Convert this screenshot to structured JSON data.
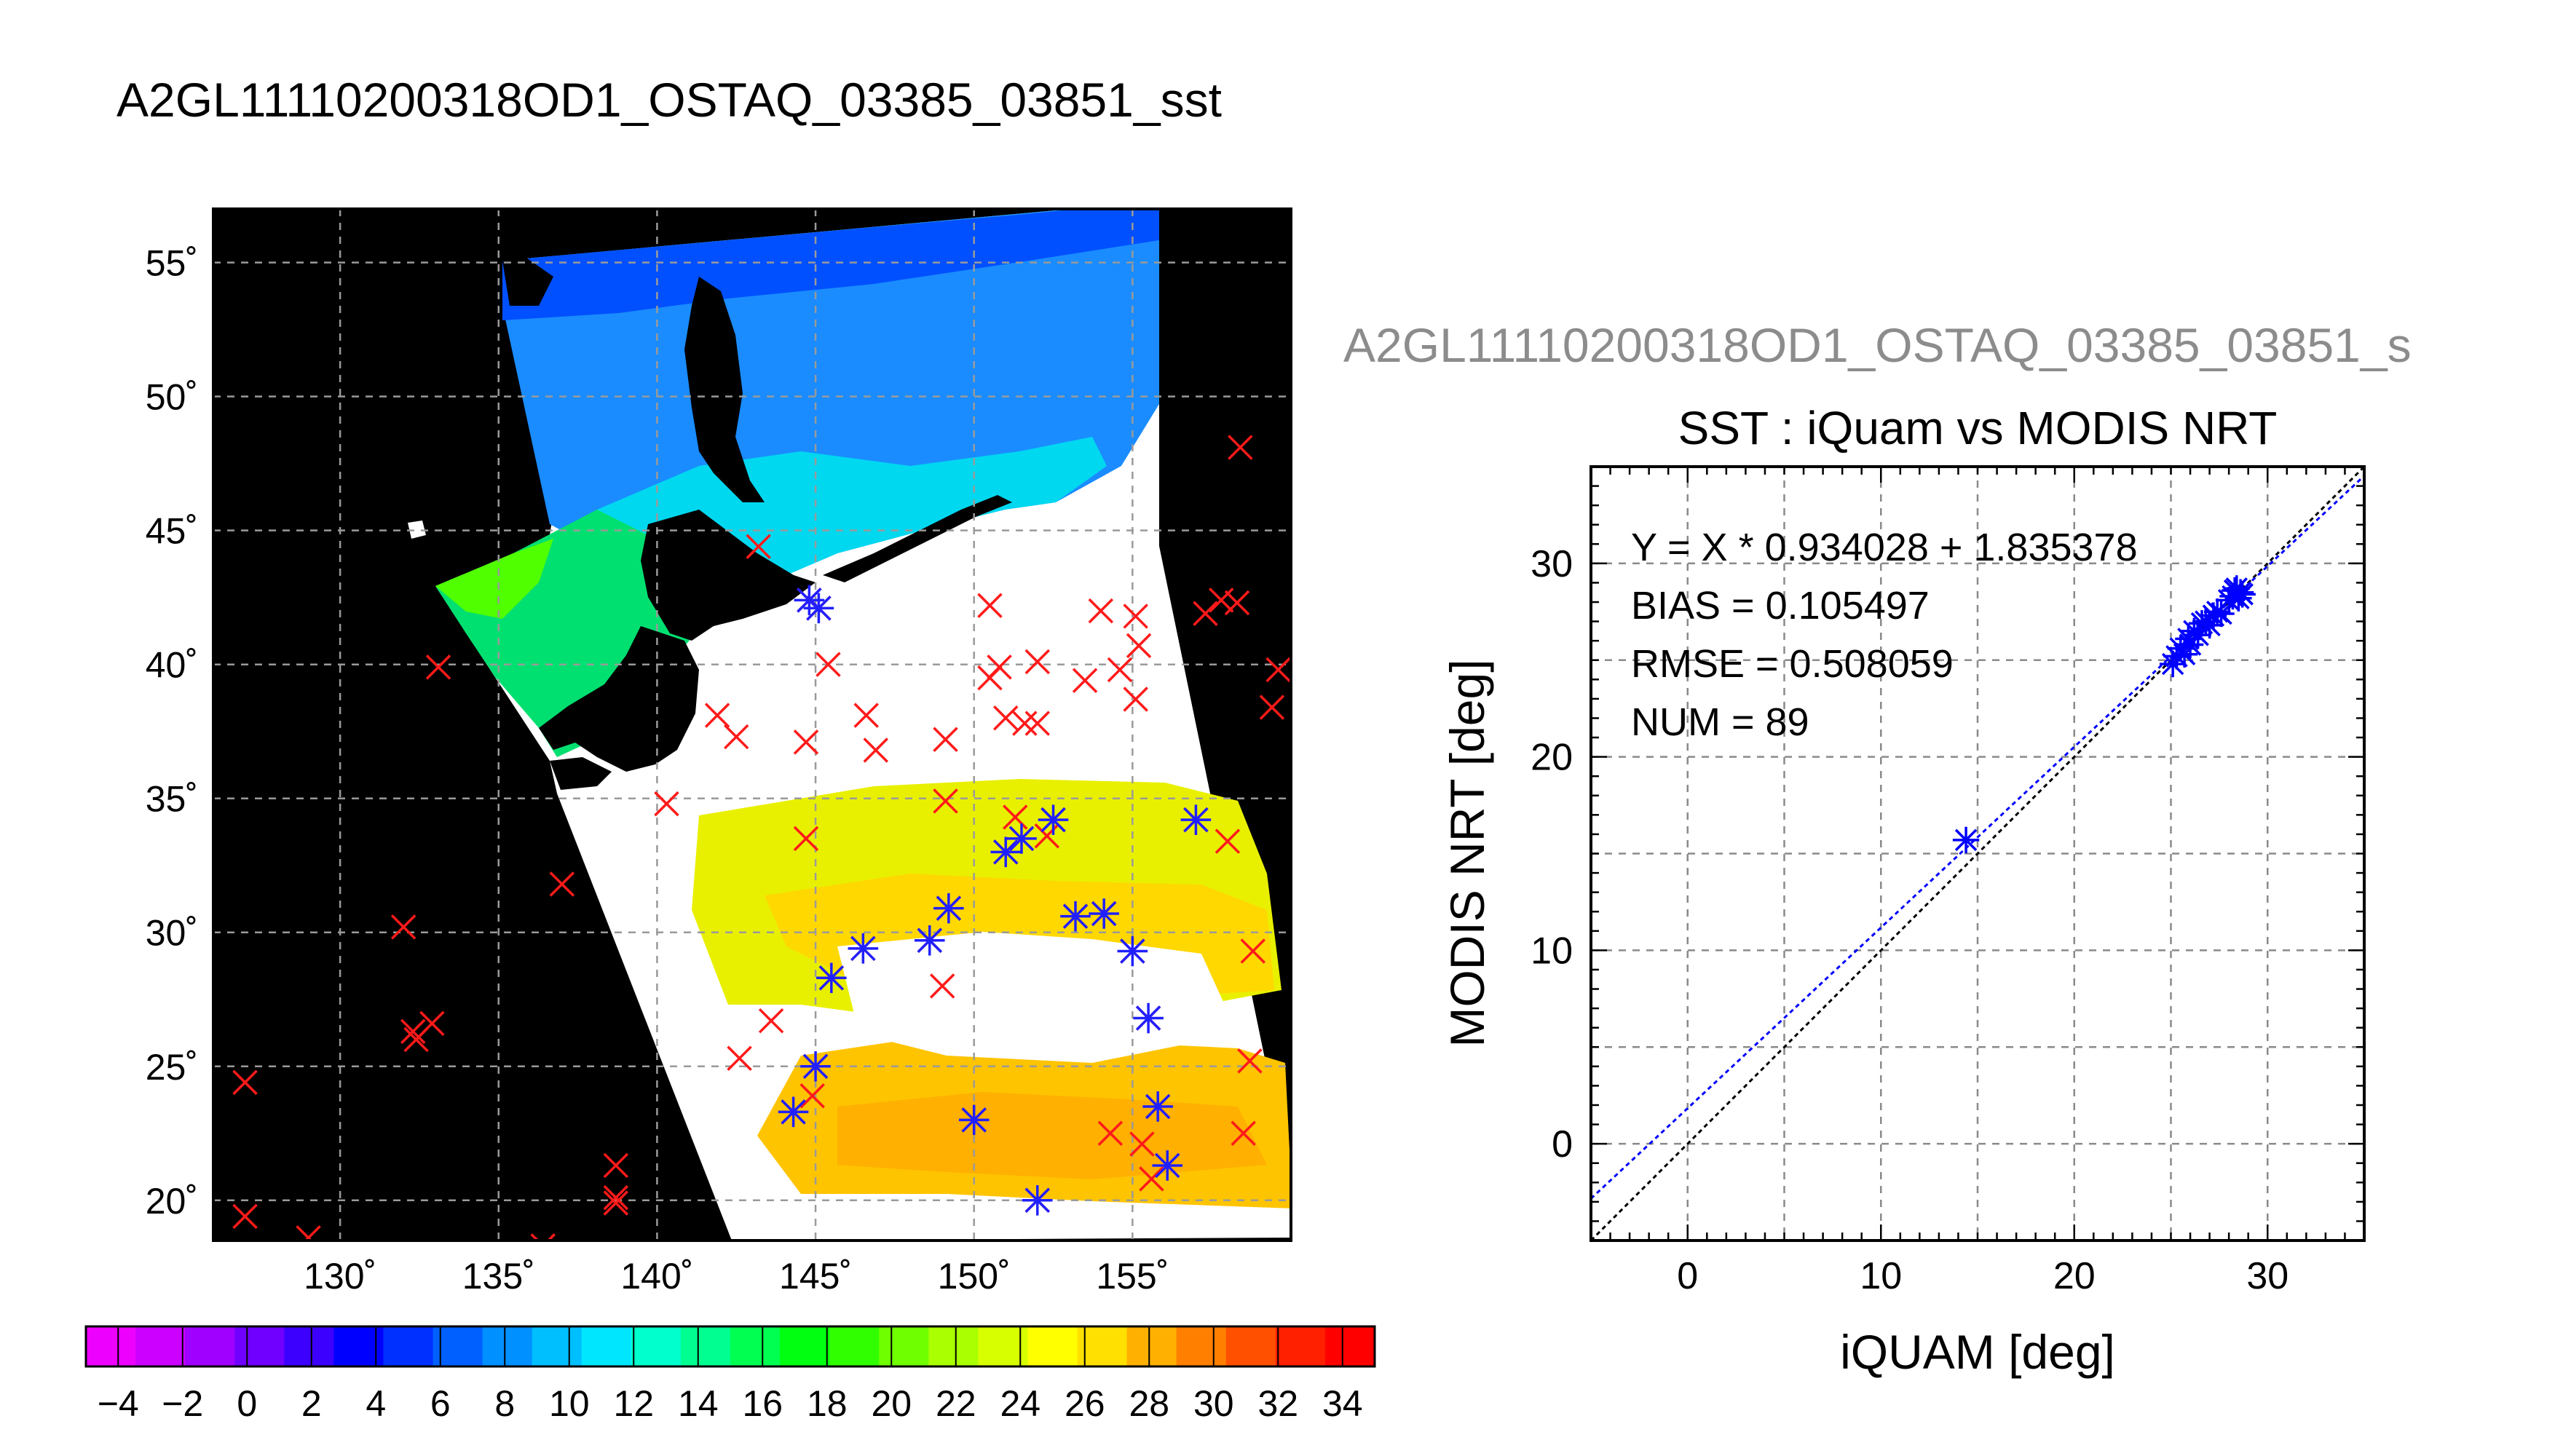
{
  "page_title": "A2GL11110200318OD1_OSTAQ_03385_03851_sst",
  "chart_data": [
    {
      "type": "map",
      "title": "A2GL11110200318OD1_OSTAQ_03385_03851_sst",
      "lon_ticks": [
        "130˚",
        "135˚",
        "140˚",
        "145˚",
        "150˚",
        "155˚"
      ],
      "lat_ticks": [
        "55˚",
        "50˚",
        "45˚",
        "40˚",
        "35˚",
        "30˚",
        "25˚",
        "20˚"
      ],
      "lon_range": [
        126,
        160
      ],
      "lat_range": [
        18.5,
        57
      ],
      "grid": true,
      "marker_colors": {
        "matched": "#2020ff",
        "unmatched": "#ff1a1a"
      },
      "matched_points": [
        [
          144.8,
          42.4
        ],
        [
          151.5,
          33.5
        ],
        [
          152.5,
          34.2
        ],
        [
          151,
          33
        ],
        [
          153.2,
          30.6
        ],
        [
          157,
          34.2
        ],
        [
          149.2,
          30.9
        ],
        [
          145.5,
          28.3
        ],
        [
          146.5,
          29.4
        ],
        [
          148.6,
          29.7
        ],
        [
          154.1,
          30.7
        ],
        [
          155,
          29.3
        ],
        [
          155.5,
          26.8
        ],
        [
          145,
          25
        ],
        [
          144.3,
          23.3
        ],
        [
          150,
          23
        ],
        [
          155.8,
          23.5
        ],
        [
          156.1,
          21.3
        ],
        [
          152,
          20
        ],
        [
          145.1,
          42.1
        ]
      ],
      "unmatched_points": [
        [
          158.4,
          48.1
        ],
        [
          158.3,
          42.3
        ],
        [
          157.8,
          42.4
        ],
        [
          157.3,
          41.9
        ],
        [
          159.6,
          39.8
        ],
        [
          159.4,
          38.4
        ],
        [
          145.4,
          40
        ],
        [
          150.5,
          42.2
        ],
        [
          154,
          42
        ],
        [
          155.1,
          41.8
        ],
        [
          155.2,
          40.7
        ],
        [
          152,
          40.1
        ],
        [
          150.5,
          39.5
        ],
        [
          150.8,
          39.9
        ],
        [
          153.5,
          39.4
        ],
        [
          154.6,
          39.8
        ],
        [
          155.1,
          38.7
        ],
        [
          151,
          38
        ],
        [
          151.6,
          37.8
        ],
        [
          152,
          37.8
        ],
        [
          146.6,
          38.1
        ],
        [
          149.1,
          37.2
        ],
        [
          146.9,
          36.8
        ],
        [
          144.7,
          37.1
        ],
        [
          141.9,
          38.1
        ],
        [
          142.5,
          37.3
        ],
        [
          140.3,
          34.8
        ],
        [
          149.1,
          34.9
        ],
        [
          144.7,
          33.5
        ],
        [
          137,
          31.8
        ],
        [
          158.8,
          29.3
        ],
        [
          158.7,
          25.2
        ],
        [
          158.5,
          22.5
        ],
        [
          158,
          33.4
        ],
        [
          132,
          30.2
        ],
        [
          132.9,
          26.6
        ],
        [
          132.4,
          26
        ],
        [
          132.3,
          26.3
        ],
        [
          127,
          24.4
        ],
        [
          127,
          19.4
        ],
        [
          129,
          18.6
        ],
        [
          136.4,
          18.3
        ],
        [
          138.7,
          21.3
        ],
        [
          138.7,
          20.1
        ],
        [
          138.7,
          19.9
        ],
        [
          142.6,
          25.3
        ],
        [
          143.6,
          26.7
        ],
        [
          149,
          28
        ],
        [
          154.3,
          22.5
        ],
        [
          155.3,
          22.1
        ],
        [
          155.6,
          20.8
        ],
        [
          151.3,
          34.3
        ],
        [
          152.3,
          33.6
        ],
        [
          144.9,
          23.9
        ],
        [
          133.1,
          39.9
        ],
        [
          143.2,
          44.4
        ]
      ],
      "colorbar": {
        "tick_labels": [
          "−4",
          "−2",
          "0",
          "2",
          "4",
          "6",
          "8",
          "10",
          "12",
          "14",
          "16",
          "18",
          "20",
          "22",
          "24",
          "26",
          "28",
          "30",
          "32",
          "34"
        ],
        "range": [
          -5,
          35
        ],
        "colors": [
          "#ee00ff",
          "#cc00ff",
          "#a000ff",
          "#7000ff",
          "#3c00ff",
          "#0000ff",
          "#0030ff",
          "#0060ff",
          "#0090ff",
          "#00bfff",
          "#00e6ff",
          "#00ffcc",
          "#00ff90",
          "#00ff50",
          "#00ff10",
          "#30ff00",
          "#70ff00",
          "#aaff00",
          "#d8ff00",
          "#ffff00",
          "#ffe000",
          "#ffb000",
          "#ff8000",
          "#ff5000",
          "#ff2000",
          "#ff0000"
        ]
      }
    },
    {
      "type": "scatter",
      "header": "A2GL11110200318OD1_OSTAQ_03385_03851_s",
      "title": "SST : iQuam vs MODIS NRT",
      "xlabel": "iQUAM [deg]",
      "ylabel": "MODIS NRT [deg]",
      "xlim": [
        -5,
        35
      ],
      "ylim": [
        -5,
        35
      ],
      "x_ticks": [
        0,
        10,
        20,
        30
      ],
      "y_ticks": [
        0,
        10,
        20,
        30
      ],
      "grid": true,
      "stats": [
        "Y = X * 0.934028 + 1.835378",
        "BIAS = 0.105497",
        "RMSE = 0.508059",
        "NUM = 89"
      ],
      "fit": {
        "slope": 0.934028,
        "intercept": 1.835378,
        "color": "#0000ff"
      },
      "identity_line_color": "#000000",
      "marker_color": "#0000ff",
      "points": [
        [
          14.4,
          15.7
        ],
        [
          25.1,
          24.8
        ],
        [
          25.3,
          25.2
        ],
        [
          25.5,
          25.6
        ],
        [
          25.7,
          25.3
        ],
        [
          25.9,
          26.1
        ],
        [
          26.0,
          25.8
        ],
        [
          26.2,
          26.5
        ],
        [
          26.4,
          26.3
        ],
        [
          26.6,
          26.9
        ],
        [
          26.8,
          27.0
        ],
        [
          27.0,
          26.8
        ],
        [
          27.2,
          27.3
        ],
        [
          27.4,
          27.5
        ],
        [
          27.6,
          27.4
        ],
        [
          28.0,
          28.1
        ],
        [
          28.2,
          28.3
        ],
        [
          28.3,
          28.6
        ],
        [
          28.5,
          28.2
        ],
        [
          28.6,
          28.5
        ],
        [
          28.7,
          28.4
        ],
        [
          28.4,
          28.7
        ]
      ]
    }
  ]
}
